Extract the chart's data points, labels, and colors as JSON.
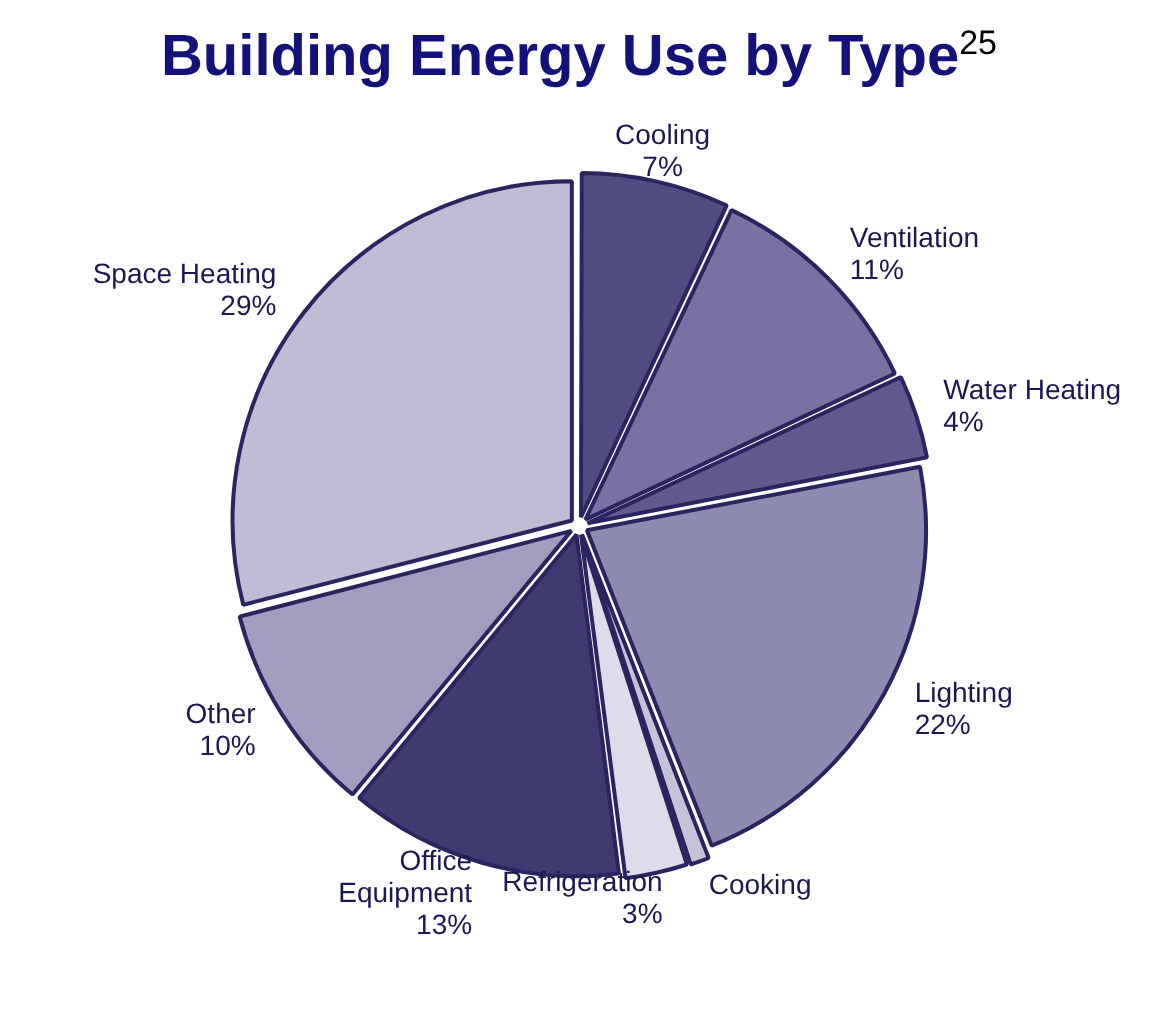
{
  "chart_data": {
    "type": "pie",
    "title": "Building Energy Use by Type$^{25}$",
    "categories": [
      "Cooling",
      "Ventilation",
      "Water Heating",
      "Lighting",
      "Cooking",
      "Refrigeration",
      "Office Equipment",
      "Other",
      "Space Heating"
    ],
    "values": [
      7,
      11,
      4,
      22,
      1,
      3,
      13,
      10,
      29
    ],
    "value_labels": [
      "7%",
      "11%",
      "4%",
      "22%",
      null,
      "3%",
      "13%",
      "10%",
      "29%"
    ],
    "colors": [
      "#514b83",
      "#7872a2",
      "#605a90",
      "#8e8bb2",
      "#c4c3da",
      "#dddceb",
      "#3f3a72",
      "#a09dc0",
      "#bebcd6"
    ],
    "legend": false
  }
}
